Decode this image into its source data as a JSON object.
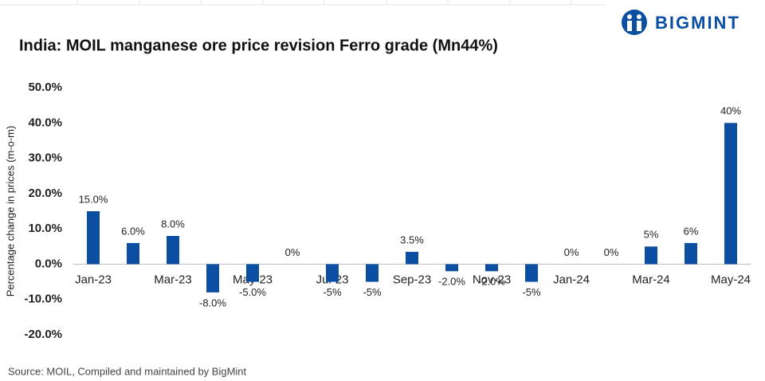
{
  "brand": "BIGMINT",
  "chart_data": {
    "type": "bar",
    "title": "India: MOIL manganese ore price revision Ferro grade (Mn44%)",
    "y_label": "Percentage change in prices (m-o-m)",
    "source": "Source: MOIL, Compiled and maintained by BigMint",
    "categories": [
      "Jan-23",
      null,
      "Mar-23",
      null,
      "May-23",
      null,
      "Jul-23",
      null,
      "Sep-23",
      null,
      "Nov-23",
      null,
      "Jan-24",
      null,
      "Mar-24",
      null,
      "May-24"
    ],
    "values": [
      15,
      6,
      8,
      -8,
      -5,
      0,
      -5,
      -5,
      3.5,
      -2,
      -2,
      -5,
      0,
      0,
      5,
      6,
      40
    ],
    "value_labels": [
      "15.0%",
      "6.0%",
      "8.0%",
      "-8.0%",
      "-5.0%",
      "0%",
      "-5%",
      "-5%",
      "3.5%",
      "-2.0%",
      "-2.0%",
      "-5%",
      "0%",
      "0%",
      "5%",
      "6%",
      "40%"
    ],
    "color": "#0b4ea2",
    "ylim": [
      -20,
      50
    ],
    "yticks": [
      {
        "value": -20,
        "label": "-20.0%"
      },
      {
        "value": -10,
        "label": "-10.0%"
      },
      {
        "value": 0,
        "label": "0.0%"
      },
      {
        "value": 10,
        "label": "10.0%"
      },
      {
        "value": 20,
        "label": "20.0%"
      },
      {
        "value": 30,
        "label": "30.0%"
      },
      {
        "value": 40,
        "label": "40.0%"
      },
      {
        "value": 50,
        "label": "50.0%"
      }
    ],
    "grid": false
  }
}
